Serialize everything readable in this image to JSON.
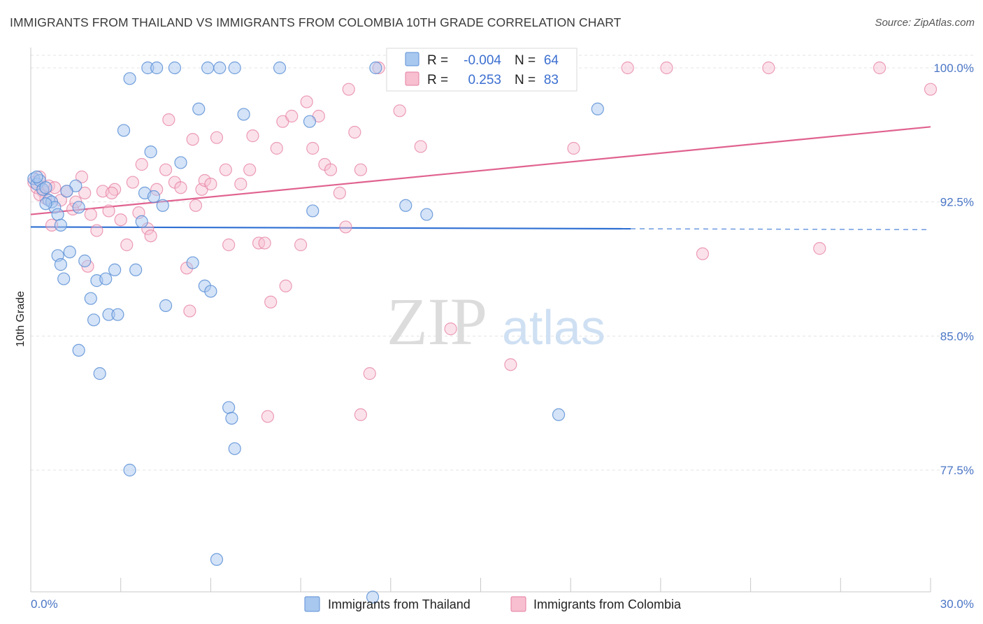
{
  "header": {
    "title": "IMMIGRANTS FROM THAILAND VS IMMIGRANTS FROM COLOMBIA 10TH GRADE CORRELATION CHART",
    "source": "Source: ZipAtlas.com"
  },
  "watermark": {
    "zip": "ZIP",
    "atlas": "atlas"
  },
  "legend_box": {
    "rows": [
      {
        "r_label": "R =",
        "r_value": "-0.004",
        "n_label": "N =",
        "n_value": "64"
      },
      {
        "r_label": "R =",
        "r_value": "0.253",
        "n_label": "N =",
        "n_value": "83"
      }
    ]
  },
  "bottom_legend": {
    "items": [
      "Immigrants from Thailand",
      "Immigrants from Colombia"
    ]
  },
  "colors": {
    "thailand_fill": "#a9c8ef",
    "thailand_stroke": "#5b8fd6",
    "thailand_line": "#2e6fd3",
    "colombia_fill": "#f7bfd0",
    "colombia_stroke": "#e57ea0",
    "colombia_line": "#e0628f",
    "tick_label": "#4a76c6"
  },
  "chart_data": {
    "type": "scatter",
    "title": "IMMIGRANTS FROM THAILAND VS IMMIGRANTS FROM COLOMBIA 10TH GRADE CORRELATION CHART",
    "xlabel": "",
    "ylabel": "10th Grade",
    "xlim": [
      0,
      30
    ],
    "ylim": [
      70.4,
      100.7
    ],
    "x_tick_labels": [
      "0.0%",
      "30.0%"
    ],
    "y_ticks": [
      77.5,
      85.0,
      92.5,
      100.0
    ],
    "y_tick_labels": [
      "77.5%",
      "85.0%",
      "92.5%",
      "100.0%"
    ],
    "grid": true,
    "series": [
      {
        "name": "Immigrants from Thailand",
        "r": -0.004,
        "n": 64,
        "trend": {
          "x0": 0.0,
          "y0": 91.1,
          "x1": 20.0,
          "y1": 91.0,
          "dashed_to_x": 30.0,
          "dashed_to_y": 90.95
        },
        "points": [
          [
            0.1,
            93.8
          ],
          [
            0.2,
            93.5
          ],
          [
            0.3,
            93.7
          ],
          [
            0.4,
            93.2
          ],
          [
            0.5,
            93.3
          ],
          [
            0.6,
            92.6
          ],
          [
            0.7,
            92.5
          ],
          [
            0.8,
            92.2
          ],
          [
            0.9,
            91.8
          ],
          [
            1.0,
            91.2
          ],
          [
            0.9,
            89.5
          ],
          [
            1.0,
            89.0
          ],
          [
            1.1,
            88.2
          ],
          [
            1.3,
            89.7
          ],
          [
            1.5,
            93.4
          ],
          [
            1.6,
            92.2
          ],
          [
            1.8,
            89.2
          ],
          [
            2.0,
            87.1
          ],
          [
            2.2,
            88.1
          ],
          [
            2.5,
            88.2
          ],
          [
            2.6,
            86.2
          ],
          [
            2.8,
            88.7
          ],
          [
            2.9,
            86.2
          ],
          [
            3.1,
            96.5
          ],
          [
            3.3,
            99.4
          ],
          [
            3.5,
            88.7
          ],
          [
            3.7,
            91.4
          ],
          [
            3.8,
            93.0
          ],
          [
            3.9,
            100.0
          ],
          [
            4.0,
            95.3
          ],
          [
            4.2,
            100.0
          ],
          [
            4.4,
            92.3
          ],
          [
            4.5,
            86.7
          ],
          [
            4.8,
            100.0
          ],
          [
            5.0,
            94.7
          ],
          [
            5.4,
            89.1
          ],
          [
            5.6,
            97.7
          ],
          [
            5.8,
            87.8
          ],
          [
            6.0,
            87.5
          ],
          [
            5.9,
            100.0
          ],
          [
            6.3,
            100.0
          ],
          [
            6.6,
            81.0
          ],
          [
            6.7,
            80.4
          ],
          [
            6.8,
            78.7
          ],
          [
            6.8,
            100.0
          ],
          [
            7.1,
            97.4
          ],
          [
            8.3,
            100.0
          ],
          [
            9.3,
            97.0
          ],
          [
            9.4,
            92.0
          ],
          [
            11.5,
            100.0
          ],
          [
            12.5,
            92.3
          ],
          [
            13.2,
            91.8
          ],
          [
            17.6,
            80.6
          ],
          [
            18.9,
            97.7
          ],
          [
            2.3,
            82.9
          ],
          [
            3.3,
            77.5
          ],
          [
            6.2,
            72.5
          ],
          [
            11.4,
            70.4
          ],
          [
            2.1,
            85.9
          ],
          [
            1.6,
            84.2
          ],
          [
            0.5,
            92.4
          ],
          [
            0.2,
            93.9
          ],
          [
            1.2,
            93.1
          ],
          [
            4.1,
            92.8
          ]
        ]
      },
      {
        "name": "Immigrants from Colombia",
        "r": 0.253,
        "n": 83,
        "trend": {
          "x0": 0.0,
          "y0": 91.8,
          "x1": 30.0,
          "y1": 96.7
        },
        "points": [
          [
            0.1,
            93.6
          ],
          [
            0.2,
            93.3
          ],
          [
            0.3,
            93.9
          ],
          [
            0.4,
            93.1
          ],
          [
            0.5,
            92.7
          ],
          [
            0.6,
            93.4
          ],
          [
            0.7,
            91.2
          ],
          [
            0.8,
            93.3
          ],
          [
            1.0,
            92.6
          ],
          [
            1.2,
            93.1
          ],
          [
            1.4,
            92.1
          ],
          [
            1.5,
            92.5
          ],
          [
            1.7,
            93.9
          ],
          [
            1.8,
            93.0
          ],
          [
            2.0,
            91.8
          ],
          [
            2.2,
            90.9
          ],
          [
            2.4,
            93.1
          ],
          [
            2.6,
            92.0
          ],
          [
            2.8,
            93.2
          ],
          [
            3.0,
            91.5
          ],
          [
            3.2,
            90.1
          ],
          [
            3.4,
            93.6
          ],
          [
            3.6,
            91.9
          ],
          [
            3.7,
            94.6
          ],
          [
            3.9,
            91.0
          ],
          [
            4.0,
            90.6
          ],
          [
            4.2,
            93.2
          ],
          [
            4.5,
            94.3
          ],
          [
            4.6,
            97.1
          ],
          [
            4.8,
            93.6
          ],
          [
            5.0,
            93.3
          ],
          [
            5.2,
            88.8
          ],
          [
            5.4,
            96.0
          ],
          [
            5.5,
            92.3
          ],
          [
            5.7,
            93.2
          ],
          [
            5.8,
            93.7
          ],
          [
            6.0,
            93.5
          ],
          [
            6.2,
            96.1
          ],
          [
            6.5,
            94.3
          ],
          [
            6.6,
            90.1
          ],
          [
            7.0,
            93.5
          ],
          [
            7.3,
            94.3
          ],
          [
            7.4,
            96.2
          ],
          [
            7.6,
            90.2
          ],
          [
            7.8,
            90.2
          ],
          [
            8.0,
            86.9
          ],
          [
            8.2,
            95.5
          ],
          [
            8.4,
            97.0
          ],
          [
            8.5,
            87.8
          ],
          [
            8.7,
            97.3
          ],
          [
            9.0,
            90.1
          ],
          [
            9.2,
            98.1
          ],
          [
            9.4,
            95.5
          ],
          [
            9.6,
            97.3
          ],
          [
            9.8,
            94.6
          ],
          [
            10.0,
            94.3
          ],
          [
            10.3,
            93.0
          ],
          [
            10.5,
            91.1
          ],
          [
            10.6,
            98.8
          ],
          [
            10.8,
            96.4
          ],
          [
            11.0,
            94.3
          ],
          [
            11.3,
            82.9
          ],
          [
            11.6,
            100.0
          ],
          [
            12.3,
            97.6
          ],
          [
            13.0,
            95.6
          ],
          [
            14.0,
            85.4
          ],
          [
            16.0,
            83.4
          ],
          [
            16.3,
            100.0
          ],
          [
            17.4,
            100.0
          ],
          [
            18.1,
            95.5
          ],
          [
            19.9,
            100.0
          ],
          [
            21.2,
            100.0
          ],
          [
            22.4,
            89.6
          ],
          [
            24.6,
            100.0
          ],
          [
            26.3,
            89.9
          ],
          [
            28.3,
            100.0
          ],
          [
            30.0,
            98.8
          ],
          [
            7.9,
            80.5
          ],
          [
            11.0,
            80.6
          ],
          [
            5.3,
            86.4
          ],
          [
            1.9,
            88.9
          ],
          [
            2.7,
            93.0
          ],
          [
            0.3,
            92.9
          ]
        ]
      }
    ]
  }
}
